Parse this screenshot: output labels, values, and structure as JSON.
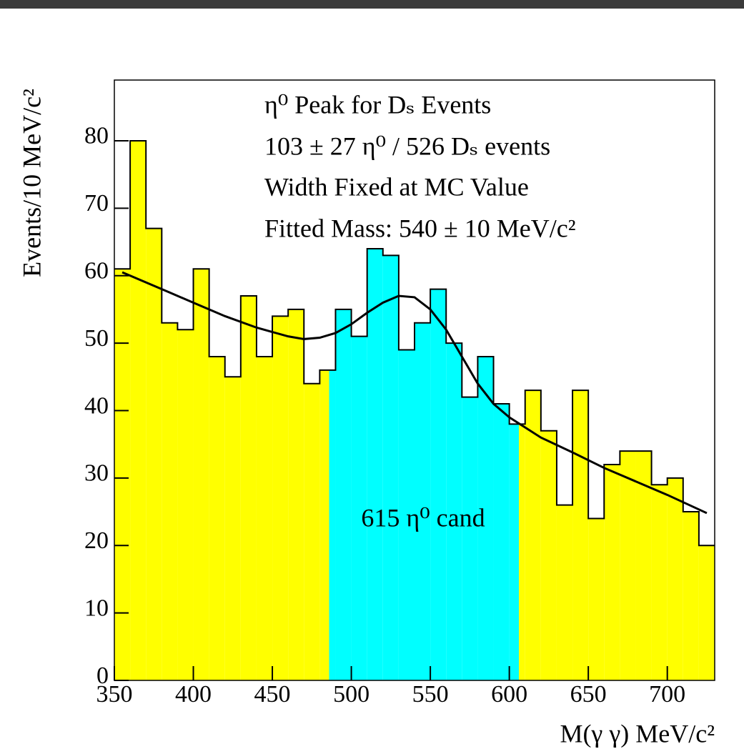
{
  "chart_data": {
    "type": "histogram",
    "annotations": [
      "η⁰ Peak for Dₛ Events",
      "103 ± 27  η⁰  / 526 Dₛ events",
      "Width Fixed at MC Value",
      "Fitted Mass: 540 ± 10 MeV/c²"
    ],
    "region_label": "615 η⁰ cand",
    "x_label": "M(γ γ)  MeV/c²",
    "y_label": "Events/10 MeV/c²",
    "bins": [
      350,
      360,
      370,
      380,
      390,
      400,
      410,
      420,
      430,
      440,
      450,
      460,
      470,
      480,
      490,
      500,
      510,
      520,
      530,
      540,
      550,
      560,
      570,
      580,
      590,
      600,
      610,
      620,
      630,
      640,
      650,
      660,
      670,
      680,
      690,
      700,
      710,
      720,
      730
    ],
    "values": [
      61,
      80,
      67,
      53,
      52,
      61,
      48,
      45,
      57,
      48,
      54,
      55,
      44,
      46,
      55,
      51,
      64,
      63,
      49,
      53,
      58,
      50,
      42,
      48,
      41,
      38,
      43,
      37,
      26,
      43,
      24,
      32,
      34,
      34,
      29,
      30,
      25,
      20
    ],
    "color": "#ffff00",
    "highlight_range": [
      486,
      606
    ],
    "highlight_color": "#00ffff",
    "fit": {
      "color": "#000000",
      "x": [
        355,
        370,
        385,
        400,
        420,
        440,
        460,
        470,
        480,
        490,
        500,
        510,
        520,
        530,
        540,
        550,
        560,
        570,
        580,
        590,
        600,
        620,
        640,
        660,
        680,
        700,
        725
      ],
      "values": [
        60.5,
        59,
        57.5,
        56,
        54,
        52.3,
        51,
        50.6,
        50.8,
        51.5,
        52.8,
        54.5,
        56,
        57,
        56.8,
        55,
        52,
        48,
        44,
        41,
        39,
        36,
        33.8,
        31.5,
        29.5,
        27.5,
        24.8
      ]
    },
    "xlim": [
      350,
      730
    ],
    "ylim": [
      0,
      89
    ],
    "xticks": [
      350,
      400,
      450,
      500,
      550,
      600,
      650,
      700
    ],
    "yticks": [
      0,
      10,
      20,
      30,
      40,
      50,
      60,
      70,
      80
    ]
  }
}
